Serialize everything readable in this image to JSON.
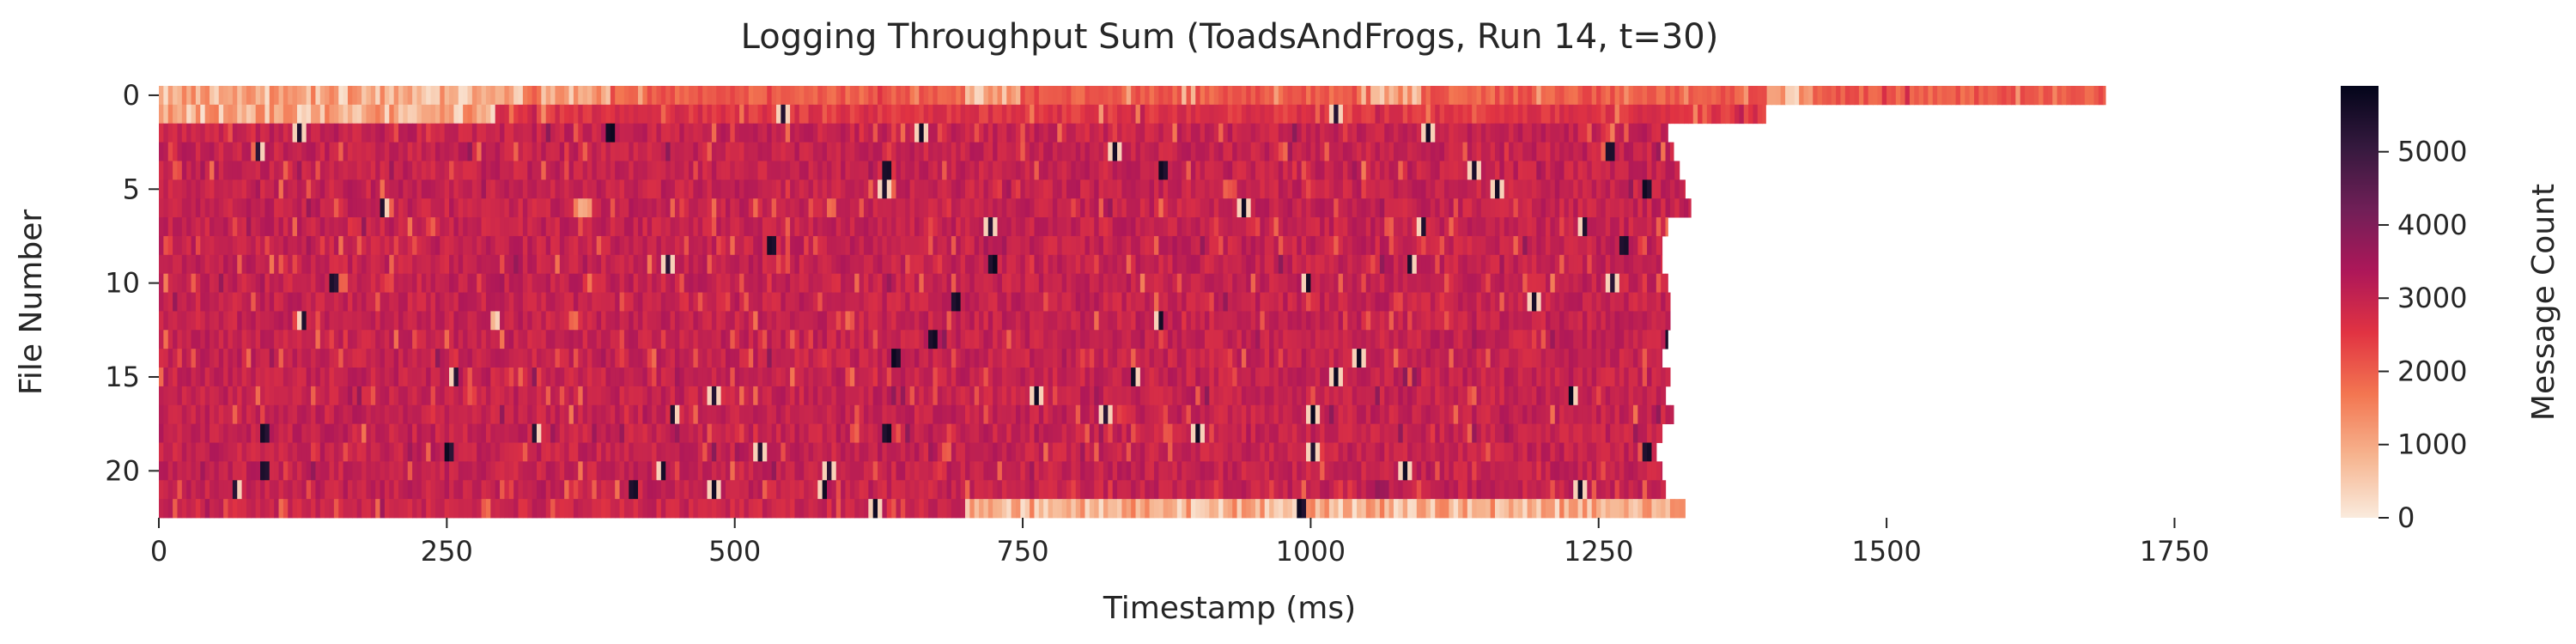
{
  "chart_data": {
    "type": "heatmap",
    "title": "Logging Throughput Sum (ToadsAndFrogs, Run 14, t=30)",
    "xlabel": "Timestamp (ms)",
    "ylabel": "File Number",
    "colorbar_label": "Message Count",
    "x_range": [
      0,
      1860
    ],
    "y_range": [
      0,
      23
    ],
    "x_ticks": [
      0,
      250,
      500,
      750,
      1000,
      1250,
      1500,
      1750
    ],
    "x_tick_labels": [
      "0",
      "250",
      "500",
      "750",
      "1000",
      "1250",
      "1500",
      "1750"
    ],
    "y_ticks": [
      0,
      5,
      10,
      15,
      20
    ],
    "y_tick_labels": [
      "0",
      "5",
      "10",
      "15",
      "20"
    ],
    "colorbar_range": [
      0,
      5900
    ],
    "colorbar_ticks": [
      0,
      1000,
      2000,
      3000,
      4000,
      5000
    ],
    "colorbar_tick_labels": [
      "0",
      "1000",
      "2000",
      "3000",
      "4000",
      "5000"
    ],
    "colormap": "rocket_r",
    "colormap_stops": [
      "#faebdd",
      "#f6b48f",
      "#f37651",
      "#e13342",
      "#ad1759",
      "#701f57",
      "#35193e",
      "#03051a"
    ],
    "grid": false,
    "rows": [
      {
        "file": 0,
        "end_ms": 1690,
        "typical": 2000,
        "low_spans": [
          [
            0,
            320
          ],
          [
            330,
            390
          ],
          [
            700,
            745
          ],
          [
            1050,
            1095
          ],
          [
            1395,
            1435
          ]
        ],
        "high_spots": []
      },
      {
        "file": 1,
        "end_ms": 1395,
        "typical": 2550,
        "low_spans": [
          [
            0,
            240
          ],
          [
            240,
            290
          ]
        ],
        "high_spots": [
          540,
          1020
        ]
      },
      {
        "file": 2,
        "end_ms": 1310,
        "typical": 3000,
        "low_spans": [],
        "high_spots": [
          120,
          390,
          660,
          1100
        ]
      },
      {
        "file": 3,
        "end_ms": 1315,
        "typical": 3000,
        "low_spans": [],
        "high_spots": [
          85,
          828,
          1258
        ]
      },
      {
        "file": 4,
        "end_ms": 1320,
        "typical": 3000,
        "low_spans": [],
        "high_spots": [
          630,
          870,
          1140
        ]
      },
      {
        "file": 5,
        "end_ms": 1325,
        "typical": 3000,
        "low_spans": [],
        "high_spots": [
          628,
          1160,
          1290
        ]
      },
      {
        "file": 6,
        "end_ms": 1330,
        "typical": 3000,
        "low_spans": [
          [
            360,
            375
          ]
        ],
        "high_spots": [
          193,
          940
        ]
      },
      {
        "file": 7,
        "end_ms": 1310,
        "typical": 3000,
        "low_spans": [],
        "high_spots": [
          720,
          1095,
          1235
        ]
      },
      {
        "file": 8,
        "end_ms": 1305,
        "typical": 3000,
        "low_spans": [],
        "high_spots": [
          530,
          1270
        ]
      },
      {
        "file": 9,
        "end_ms": 1305,
        "typical": 3000,
        "low_spans": [],
        "high_spots": [
          440,
          722,
          1085
        ]
      },
      {
        "file": 10,
        "end_ms": 1310,
        "typical": 3000,
        "low_spans": [],
        "high_spots": [
          150,
          995,
          1260
        ]
      },
      {
        "file": 11,
        "end_ms": 1312,
        "typical": 3000,
        "low_spans": [],
        "high_spots": [
          690,
          1192
        ]
      },
      {
        "file": 12,
        "end_ms": 1312,
        "typical": 3000,
        "low_spans": [
          [
            285,
            295
          ]
        ],
        "high_spots": [
          123,
          867
        ]
      },
      {
        "file": 13,
        "end_ms": 1310,
        "typical": 3000,
        "low_spans": [],
        "high_spots": [
          670,
          1310
        ]
      },
      {
        "file": 14,
        "end_ms": 1305,
        "typical": 3000,
        "low_spans": [],
        "high_spots": [
          638,
          1040
        ]
      },
      {
        "file": 15,
        "end_ms": 1312,
        "typical": 3000,
        "low_spans": [],
        "high_spots": [
          255,
          845,
          1020
        ]
      },
      {
        "file": 16,
        "end_ms": 1308,
        "typical": 3000,
        "low_spans": [],
        "high_spots": [
          480,
          760,
          1225
        ]
      },
      {
        "file": 17,
        "end_ms": 1315,
        "typical": 3000,
        "low_spans": [],
        "high_spots": [
          445,
          820,
          1000
        ]
      },
      {
        "file": 18,
        "end_ms": 1305,
        "typical": 3000,
        "low_spans": [],
        "high_spots": [
          90,
          325,
          630,
          900
        ]
      },
      {
        "file": 19,
        "end_ms": 1300,
        "typical": 3000,
        "low_spans": [],
        "high_spots": [
          250,
          520,
          1000,
          1290
        ]
      },
      {
        "file": 20,
        "end_ms": 1305,
        "typical": 3000,
        "low_spans": [],
        "high_spots": [
          90,
          435,
          580,
          1080
        ]
      },
      {
        "file": 21,
        "end_ms": 1308,
        "typical": 3000,
        "low_spans": [],
        "high_spots": [
          65,
          410,
          480,
          575,
          1232
        ]
      },
      {
        "file": 22,
        "end_ms": 1325,
        "typical": 2900,
        "low_spans": [
          [
            700,
            1325
          ]
        ],
        "high_spots": [
          620,
          990
        ]
      }
    ]
  }
}
